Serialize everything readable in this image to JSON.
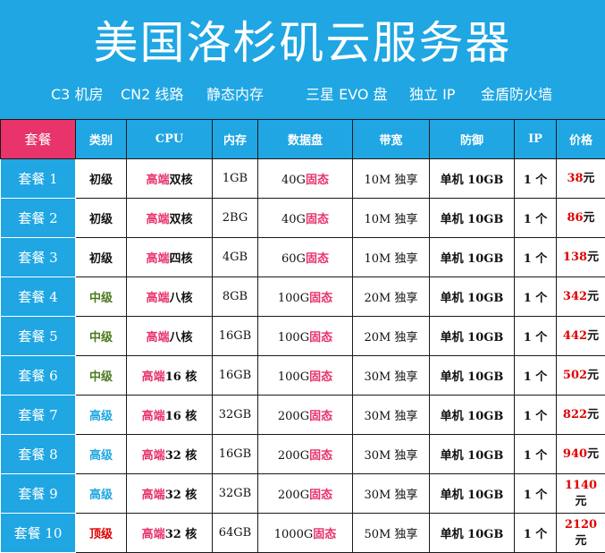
{
  "title": "美国洛杉矶云服务器",
  "features": [
    "C3 机房",
    "CN2 线路",
    "静态内存",
    "三星 EVO 盘",
    "独立 IP",
    "金盾防火墙"
  ],
  "table": {
    "headers": [
      "套餐",
      "类别",
      "CPU",
      "内存",
      "数据盘",
      "带宽",
      "防御",
      "IP",
      "价格"
    ],
    "rows": [
      {
        "name": "套餐 1",
        "category": "初级",
        "category_color": "#111111",
        "cpu_prefix": "高端",
        "cpu_suffix": "双核",
        "mem": "1GB",
        "disk_size": "40G",
        "disk_type": "固态",
        "bandwidth": "10M 独享",
        "defense": "单机 10GB",
        "ip": "1 个",
        "price": "38",
        "unit": "元"
      },
      {
        "name": "套餐 2",
        "category": "初级",
        "category_color": "#111111",
        "cpu_prefix": "高端",
        "cpu_suffix": "双核",
        "mem": "2BG",
        "disk_size": "40G",
        "disk_type": "固态",
        "bandwidth": "10M 独享",
        "defense": "单机 10GB",
        "ip": "1 个",
        "price": "86",
        "unit": "元"
      },
      {
        "name": "套餐 3",
        "category": "初级",
        "category_color": "#111111",
        "cpu_prefix": "高端",
        "cpu_suffix": "四核",
        "mem": "4GB",
        "disk_size": "60G",
        "disk_type": "固态",
        "bandwidth": "10M 独享",
        "defense": "单机 10GB",
        "ip": "1 个",
        "price": "138",
        "unit": "元"
      },
      {
        "name": "套餐 4",
        "category": "中级",
        "category_color": "#4d7a1f",
        "cpu_prefix": "高端",
        "cpu_suffix": "八核",
        "mem": "8GB",
        "disk_size": "100G",
        "disk_type": "固态",
        "bandwidth": "20M 独享",
        "defense": "单机 10GB",
        "ip": "1 个",
        "price": "342",
        "unit": "元"
      },
      {
        "name": "套餐 5",
        "category": "中级",
        "category_color": "#4d7a1f",
        "cpu_prefix": "高端",
        "cpu_suffix": "八核",
        "mem": "16GB",
        "disk_size": "100G",
        "disk_type": "固态",
        "bandwidth": "20M 独享",
        "defense": "单机 10GB",
        "ip": "1 个",
        "price": "442",
        "unit": "元"
      },
      {
        "name": "套餐 6",
        "category": "中级",
        "category_color": "#4d7a1f",
        "cpu_prefix": "高端",
        "cpu_suffix": "16 核",
        "mem": "16GB",
        "disk_size": "100G",
        "disk_type": "固态",
        "bandwidth": "30M 独享",
        "defense": "单机 10GB",
        "ip": "1 个",
        "price": "502",
        "unit": "元"
      },
      {
        "name": "套餐 7",
        "category": "高级",
        "category_color": "#1fa6e3",
        "cpu_prefix": "高端",
        "cpu_suffix": "16 核",
        "mem": "32GB",
        "disk_size": "200G",
        "disk_type": "固态",
        "bandwidth": "30M 独享",
        "defense": "单机 10GB",
        "ip": "1 个",
        "price": "822",
        "unit": "元"
      },
      {
        "name": "套餐 8",
        "category": "高级",
        "category_color": "#1fa6e3",
        "cpu_prefix": "高端",
        "cpu_suffix": "32 核",
        "mem": "16GB",
        "disk_size": "200G",
        "disk_type": "固态",
        "bandwidth": "30M 独享",
        "defense": "单机 10GB",
        "ip": "1 个",
        "price": "940",
        "unit": "元"
      },
      {
        "name": "套餐 9",
        "category": "高级",
        "category_color": "#1fa6e3",
        "cpu_prefix": "高端",
        "cpu_suffix": "32 核",
        "mem": "32GB",
        "disk_size": "200G",
        "disk_type": "固态",
        "bandwidth": "30M 独享",
        "defense": "单机 10GB",
        "ip": "1 个",
        "price": "1140",
        "unit": "元"
      },
      {
        "name": "套餐 10",
        "category": "顶级",
        "category_color": "#e00000",
        "cpu_prefix": "高端",
        "cpu_suffix": "32 核",
        "mem": "64GB",
        "disk_size": "1000G",
        "disk_type": "固态",
        "bandwidth": "50M 独享",
        "defense": "单机 10GB",
        "ip": "1 个",
        "price": "2120",
        "unit": "元"
      }
    ]
  },
  "colors": {
    "brand_blue": "#1fa6e3",
    "accent_pink": "#e8336b",
    "price_red": "#e00000",
    "mid_green": "#4d7a1f"
  }
}
